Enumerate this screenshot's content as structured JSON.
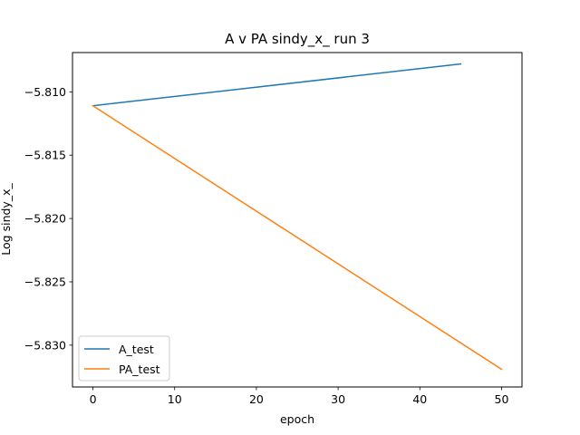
{
  "chart_data": {
    "type": "line",
    "title": "A v PA sindy_x_ run 3",
    "xlabel": "epoch",
    "ylabel": "Log sindy_x_",
    "xlim": [
      -2.5,
      52.5
    ],
    "ylim": [
      -5.8333,
      -5.8069
    ],
    "x_ticks": [
      0,
      10,
      20,
      30,
      40,
      50
    ],
    "x_tick_labels": [
      "0",
      "10",
      "20",
      "30",
      "40",
      "50"
    ],
    "y_ticks": [
      -5.81,
      -5.815,
      -5.82,
      -5.825,
      -5.83
    ],
    "y_tick_labels": [
      "−5.810",
      "−5.815",
      "−5.820",
      "−5.825",
      "−5.830"
    ],
    "grid": false,
    "legend_position": "lower-left",
    "series": [
      {
        "name": "A_test",
        "color": "#1f77b4",
        "x": [
          0,
          45
        ],
        "y": [
          -5.8111,
          -5.8078
        ]
      },
      {
        "name": "PA_test",
        "color": "#ff7f0e",
        "x": [
          0,
          50
        ],
        "y": [
          -5.8111,
          -5.8319
        ]
      }
    ]
  }
}
